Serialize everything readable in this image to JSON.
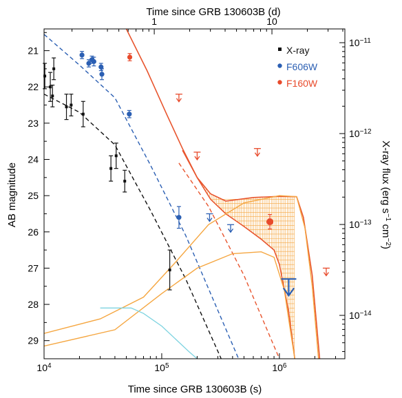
{
  "chart_data": {
    "type": "scatter",
    "top_axis": {
      "label": "Time since GRB 130603B (d)",
      "tick_labels": [
        {
          "value": 1,
          "text": "1"
        },
        {
          "value": 10,
          "text": "10"
        }
      ]
    },
    "bottom_axis": {
      "label": "Time since GRB 130603B (s)",
      "scale": "log",
      "range": [
        10000,
        3600000
      ],
      "tick_labels": [
        {
          "value": 10000,
          "text": "10",
          "exp": "4"
        },
        {
          "value": 100000,
          "text": "10",
          "exp": "5"
        },
        {
          "value": 1000000,
          "text": "10",
          "exp": "6"
        }
      ]
    },
    "left_axis": {
      "label": "AB magnitude",
      "range": [
        20.4,
        29.5
      ],
      "inverted": true,
      "tick_labels": [
        "21",
        "22",
        "23",
        "24",
        "25",
        "26",
        "27",
        "28",
        "29"
      ]
    },
    "right_axis": {
      "label": "X-ray flux",
      "unit": "(erg s",
      "unit_exp1": "−1",
      "unit_mid": " cm",
      "unit_exp2": "−2",
      "unit_end": ")",
      "scale": "log",
      "tick_labels": [
        {
          "value": 1e-11,
          "text": "10",
          "exp": "−11"
        },
        {
          "value": 1e-12,
          "text": "10",
          "exp": "−12"
        },
        {
          "value": 1e-13,
          "text": "10",
          "exp": "−13"
        },
        {
          "value": 1e-14,
          "text": "10",
          "exp": "−14"
        }
      ]
    },
    "legend": {
      "position": "top-right",
      "entries": [
        {
          "label": "X-ray",
          "color": "#111111",
          "marker": "square"
        },
        {
          "label": "F606W",
          "color": "#2b5fb3",
          "marker": "circle"
        },
        {
          "label": "F160W",
          "color": "#e84a2b",
          "marker": "circle"
        }
      ]
    },
    "colors": {
      "xray": "#111111",
      "f606w": "#2b5fb3",
      "f160w": "#e84a2b",
      "model_total": "#e8552e",
      "model_kilonova": "#f5a640",
      "model_early": "#7dd3e0"
    },
    "series": [
      {
        "name": "X-ray",
        "kind": "points",
        "points": [
          {
            "t": 10150,
            "mag": 21.7,
            "err": 0.35
          },
          {
            "t": 11300,
            "mag": 22.0,
            "err": 0.4
          },
          {
            "t": 11800,
            "mag": 22.25,
            "err": 0.3
          },
          {
            "t": 12100,
            "mag": 21.5,
            "err": 0.3
          },
          {
            "t": 15500,
            "mag": 22.55,
            "err": 0.35
          },
          {
            "t": 17000,
            "mag": 22.5,
            "err": 0.3
          },
          {
            "t": 21500,
            "mag": 22.75,
            "err": 0.35
          },
          {
            "t": 37000,
            "mag": 24.25,
            "err": 0.35
          },
          {
            "t": 41000,
            "mag": 23.9,
            "err": 0.35
          },
          {
            "t": 48500,
            "mag": 24.6,
            "err": 0.3
          },
          {
            "t": 117000,
            "mag": 27.05,
            "err": 0.55
          }
        ]
      },
      {
        "name": "F606W",
        "kind": "points",
        "points": [
          {
            "t": 21000,
            "mag": 21.12,
            "err": 0.1
          },
          {
            "t": 24000,
            "mag": 21.35,
            "err": 0.1
          },
          {
            "t": 25500,
            "mag": 21.25,
            "err": 0.1
          },
          {
            "t": 26500,
            "mag": 21.3,
            "err": 0.12
          },
          {
            "t": 30500,
            "mag": 21.45,
            "err": 0.1
          },
          {
            "t": 31000,
            "mag": 21.65,
            "err": 0.15
          },
          {
            "t": 53000,
            "mag": 22.75,
            "err": 0.1
          },
          {
            "t": 140000,
            "mag": 25.6,
            "err": 0.3
          }
        ]
      },
      {
        "name": "F160W",
        "kind": "points",
        "points": [
          {
            "t": 53500,
            "mag": 21.18,
            "err": 0.1
          },
          {
            "t": 830000,
            "mag": 25.72,
            "err": 0.2
          }
        ]
      }
    ],
    "upper_limits": [
      {
        "band": "F160W",
        "t": 140000,
        "mag": 22.2
      },
      {
        "band": "F160W",
        "t": 200000,
        "mag": 23.8
      },
      {
        "band": "F160W",
        "t": 650000,
        "mag": 23.7
      },
      {
        "band": "F160W",
        "t": 2500000,
        "mag": 27.0
      },
      {
        "band": "F606W",
        "t": 255000,
        "mag": 25.5
      },
      {
        "band": "F606W",
        "t": 385000,
        "mag": 25.8
      },
      {
        "band": "F606W",
        "t": 1200000,
        "mag": 27.3
      }
    ],
    "models": [
      {
        "name": "xray_afterglow",
        "style": "dashed",
        "points": [
          [
            10000,
            22.2
          ],
          [
            20000,
            22.7
          ],
          [
            40000,
            23.6
          ],
          [
            80000,
            25.4
          ],
          [
            160000,
            27.3
          ],
          [
            320000,
            29.5
          ]
        ]
      },
      {
        "name": "f606w_afterglow",
        "style": "dashed",
        "points": [
          [
            10000,
            20.55
          ],
          [
            20000,
            21.4
          ],
          [
            40000,
            22.3
          ],
          [
            80000,
            24.15
          ],
          [
            160000,
            26.1
          ],
          [
            450000,
            29.5
          ]
        ]
      },
      {
        "name": "f160w_afterglow",
        "style": "dashed",
        "points": [
          [
            140000,
            24.1
          ],
          [
            250000,
            25.3
          ],
          [
            500000,
            27.2
          ],
          [
            1000000,
            29.5
          ]
        ]
      },
      {
        "name": "f160w_total_upper",
        "style": "solid",
        "points": [
          [
            50000,
            20.4
          ],
          [
            75000,
            21.55
          ],
          [
            110000,
            22.75
          ],
          [
            150000,
            23.7
          ],
          [
            200000,
            24.5
          ],
          [
            260000,
            24.95
          ],
          [
            350000,
            25.15
          ],
          [
            600000,
            25.05
          ],
          [
            1000000,
            25.02
          ],
          [
            1400000,
            25.03
          ],
          [
            1600000,
            25.6
          ],
          [
            1900000,
            27.2
          ],
          [
            2200000,
            29.5
          ]
        ]
      },
      {
        "name": "f160w_total_lower",
        "style": "solid",
        "points": [
          [
            150000,
            23.75
          ],
          [
            200000,
            24.5
          ],
          [
            260000,
            25.1
          ],
          [
            350000,
            25.5
          ],
          [
            500000,
            25.85
          ],
          [
            700000,
            26.2
          ],
          [
            900000,
            26.5
          ],
          [
            1000000,
            26.9
          ],
          [
            1200000,
            28.2
          ],
          [
            1350000,
            29.5
          ]
        ]
      },
      {
        "name": "kilonova_upper",
        "style": "solid",
        "points": [
          [
            10000,
            28.8
          ],
          [
            30000,
            28.4
          ],
          [
            70000,
            27.8
          ],
          [
            130000,
            26.85
          ],
          [
            250000,
            25.8
          ],
          [
            500000,
            25.2
          ],
          [
            1000000,
            25.0
          ],
          [
            1400000,
            25.03
          ],
          [
            1650000,
            25.9
          ],
          [
            1900000,
            27.5
          ],
          [
            2150000,
            29.5
          ]
        ]
      },
      {
        "name": "kilonova_lower",
        "style": "solid",
        "points": [
          [
            10000,
            29.15
          ],
          [
            40000,
            28.7
          ],
          [
            100000,
            27.7
          ],
          [
            200000,
            27.0
          ],
          [
            400000,
            26.6
          ],
          [
            700000,
            26.55
          ],
          [
            900000,
            26.7
          ],
          [
            1100000,
            27.6
          ],
          [
            1250000,
            28.8
          ],
          [
            1350000,
            29.5
          ]
        ]
      },
      {
        "name": "early_component",
        "style": "solid",
        "points": [
          [
            30000,
            28.1
          ],
          [
            55000,
            28.1
          ],
          [
            70000,
            28.25
          ],
          [
            100000,
            28.6
          ],
          [
            170000,
            29.3
          ],
          [
            200000,
            29.5
          ]
        ]
      }
    ]
  }
}
